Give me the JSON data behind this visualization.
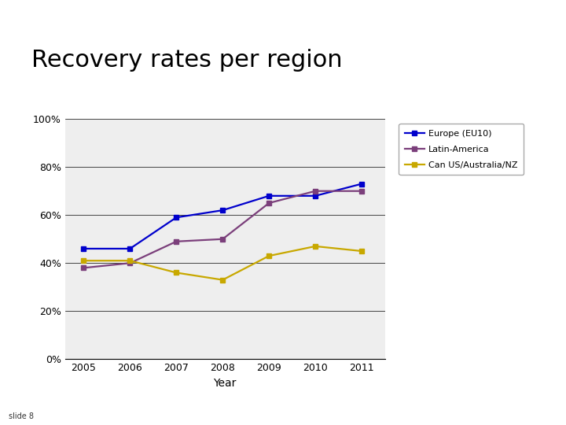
{
  "title": "Recovery rates per region",
  "subtitle": "slide 8",
  "years": [
    2005,
    2006,
    2007,
    2008,
    2009,
    2010,
    2011
  ],
  "europe": [
    0.46,
    0.46,
    0.59,
    0.62,
    0.68,
    0.68,
    0.73
  ],
  "latin_america": [
    0.38,
    0.4,
    0.49,
    0.5,
    0.65,
    0.7,
    0.7
  ],
  "can_us_aus": [
    0.41,
    0.41,
    0.36,
    0.33,
    0.43,
    0.47,
    0.45
  ],
  "europe_color": "#0000CC",
  "latin_america_color": "#7B3F7B",
  "can_us_aus_color": "#C8A800",
  "bg_color": "#FFFFFF",
  "plot_bg_color": "#EEEEEE",
  "xlabel": "Year",
  "ylim": [
    0,
    1.0
  ],
  "yticks": [
    0.0,
    0.2,
    0.4,
    0.6,
    0.8,
    1.0
  ],
  "legend_labels": [
    "Europe (EU10)",
    "Latin-America",
    "Can US/Australia/NZ"
  ],
  "title_fontsize": 22,
  "axis_fontsize": 9,
  "tick_fontsize": 9,
  "header_green": "#5B8E3E",
  "header_green2": "#4CAF50",
  "sidebar_green": "#6AAF3D",
  "slide_bg": "#E8E8E8"
}
